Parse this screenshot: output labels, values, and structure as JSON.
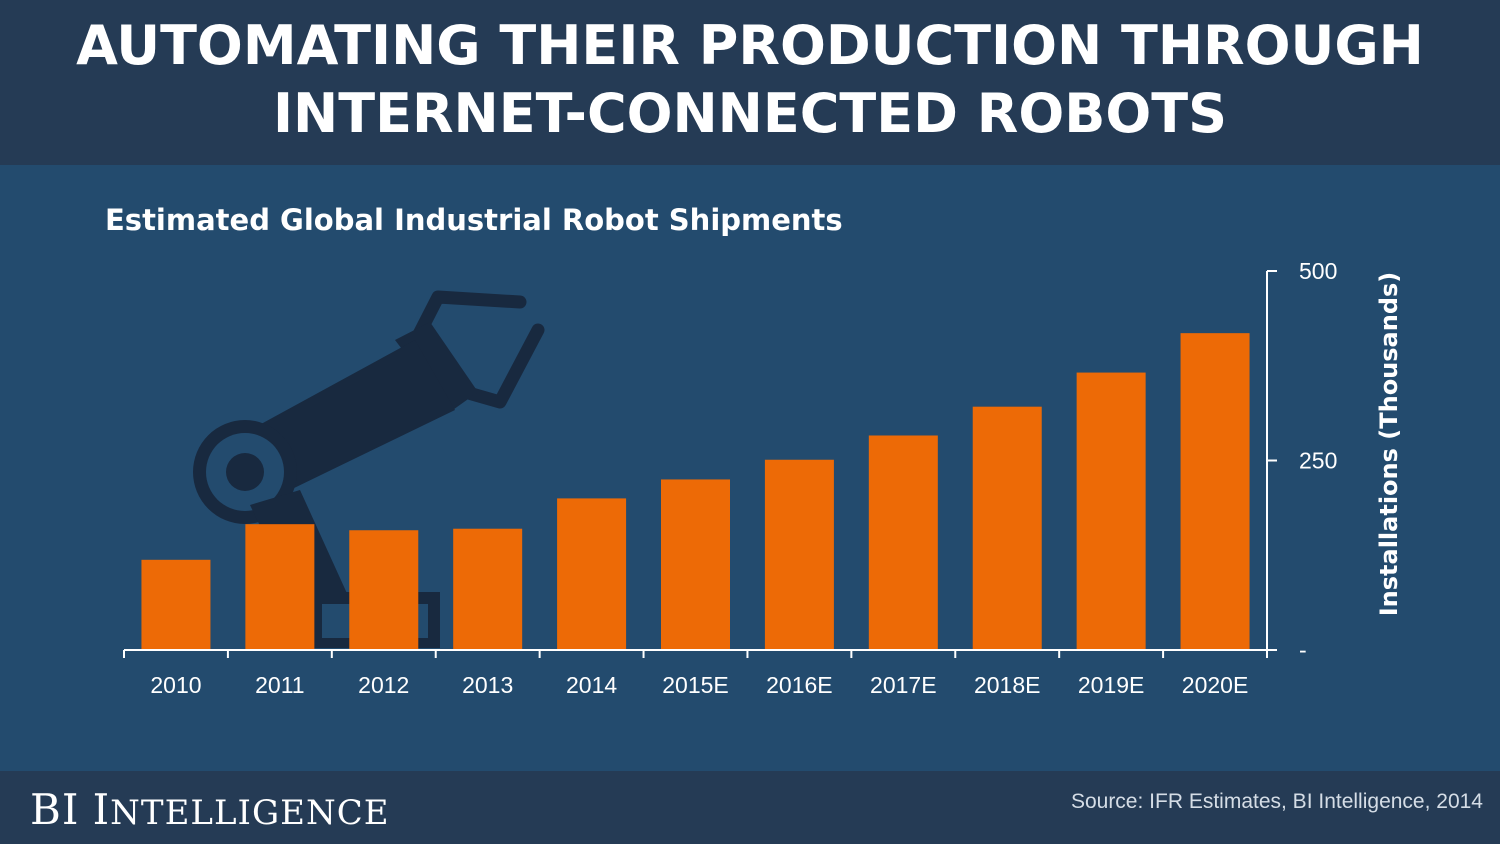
{
  "header": {
    "title_line1": "AUTOMATING THEIR PRODUCTION THROUGH",
    "title_line2": "INTERNET-CONNECTED ROBOTS"
  },
  "footer": {
    "brand_initials": "BI",
    "brand_first": "I",
    "brand_rest": "NTELLIGENCE",
    "source": "Source: IFR Estimates, BI Intelligence, 2014"
  },
  "colors": {
    "background": "#234b6e",
    "header_footer": "#253b55",
    "bar": "#ed6a06",
    "robot_silhouette": "#18293f",
    "axis": "#ffffff"
  },
  "chart_data": {
    "type": "bar",
    "title": "Estimated Global Industrial Robot Shipments",
    "categories": [
      "2010",
      "2011",
      "2012",
      "2013",
      "2014",
      "2015E",
      "2016E",
      "2017E",
      "2018E",
      "2019E",
      "2020E"
    ],
    "values": [
      119,
      166,
      158,
      160,
      200,
      225,
      251,
      283,
      321,
      366,
      418
    ],
    "ylabel": "Installations (Thousands)",
    "ylim": [
      0,
      500
    ],
    "y_ticks": [
      {
        "value": 0,
        "label": "-"
      },
      {
        "value": 250,
        "label": "250"
      },
      {
        "value": 500,
        "label": "500"
      }
    ],
    "y_axis_side": "right",
    "grid": false,
    "legend": "none",
    "decoration": "robot-arm-silhouette"
  }
}
